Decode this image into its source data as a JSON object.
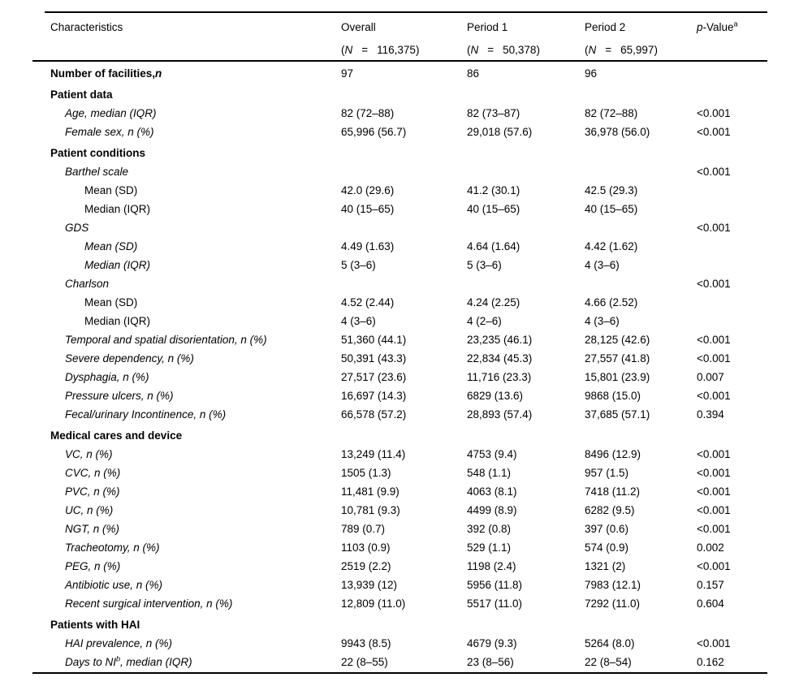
{
  "table": {
    "header": {
      "col1": "Characteristics",
      "paren_open": "(",
      "paren_close": ")",
      "pvalue": {
        "p": "p",
        "rest": "-Value",
        "sup": "a"
      },
      "cols": [
        {
          "title": "Overall",
          "n": "N",
          "eq": "=",
          "count": "116,375"
        },
        {
          "title": "Period 1",
          "n": "N",
          "eq": "=",
          "count": "50,378"
        },
        {
          "title": "Period 2",
          "n": "N",
          "eq": "=",
          "count": "65,997"
        }
      ]
    },
    "rows": [
      {
        "label": "Number of facilities,",
        "label_n": "n",
        "bold": true,
        "indent": 0,
        "italic": false,
        "values": [
          "97",
          "86",
          "96",
          ""
        ]
      },
      {
        "label": "Patient data",
        "section": true,
        "indent": 0,
        "values": [
          "",
          "",
          "",
          ""
        ]
      },
      {
        "label": "Age, median (IQR)",
        "indent": 1,
        "italic": true,
        "values": [
          "82 (72–88)",
          "82 (73–87)",
          "82 (72–88)",
          "<0.001"
        ]
      },
      {
        "label": "Female sex, n (%)",
        "indent": 1,
        "italic": true,
        "values": [
          "65,996 (56.7)",
          "29,018 (57.6)",
          "36,978 (56.0)",
          "<0.001"
        ]
      },
      {
        "label": "Patient conditions",
        "section": true,
        "indent": 0,
        "values": [
          "",
          "",
          "",
          ""
        ]
      },
      {
        "label": "Barthel scale",
        "indent": 1,
        "italic": true,
        "values": [
          "",
          "",
          "",
          "<0.001"
        ]
      },
      {
        "label": "Mean (SD)",
        "indent": 2,
        "italic": false,
        "values": [
          "42.0 (29.6)",
          "41.2 (30.1)",
          "42.5 (29.3)",
          ""
        ]
      },
      {
        "label": "Median (IQR)",
        "indent": 2,
        "italic": false,
        "values": [
          "40 (15–65)",
          "40 (15–65)",
          "40 (15–65)",
          ""
        ]
      },
      {
        "label": "GDS",
        "indent": 1,
        "italic": true,
        "values": [
          "",
          "",
          "",
          "<0.001"
        ]
      },
      {
        "label": "Mean (SD)",
        "indent": 2,
        "italic": true,
        "values": [
          "4.49 (1.63)",
          "4.64 (1.64)",
          "4.42 (1.62)",
          ""
        ]
      },
      {
        "label": "Median (IQR)",
        "indent": 2,
        "italic": true,
        "values": [
          "5 (3–6)",
          "5 (3–6)",
          "4 (3–6)",
          ""
        ]
      },
      {
        "label": "Charlson",
        "indent": 1,
        "italic": true,
        "values": [
          "",
          "",
          "",
          "<0.001"
        ]
      },
      {
        "label": "Mean (SD)",
        "indent": 2,
        "italic": false,
        "values": [
          "4.52 (2.44)",
          "4.24 (2.25)",
          "4.66 (2.52)",
          ""
        ]
      },
      {
        "label": "Median (IQR)",
        "indent": 2,
        "italic": false,
        "values": [
          "4 (3–6)",
          "4 (2–6)",
          "4 (3–6)",
          ""
        ]
      },
      {
        "label": "Temporal and spatial disorientation, n (%)",
        "indent": 1,
        "italic": true,
        "values": [
          "51,360 (44.1)",
          "23,235 (46.1)",
          "28,125 (42.6)",
          "<0.001"
        ]
      },
      {
        "label": "Severe dependency, n (%)",
        "indent": 1,
        "italic": true,
        "values": [
          "50,391 (43.3)",
          "22,834 (45.3)",
          "27,557 (41.8)",
          "<0.001"
        ]
      },
      {
        "label": "Dysphagia, n (%)",
        "indent": 1,
        "italic": true,
        "values": [
          "27,517 (23.6)",
          "11,716 (23.3)",
          "15,801 (23.9)",
          "0.007"
        ]
      },
      {
        "label": "Pressure ulcers, n (%)",
        "indent": 1,
        "italic": true,
        "values": [
          "16,697 (14.3)",
          "6829 (13.6)",
          "9868 (15.0)",
          "<0.001"
        ]
      },
      {
        "label": "Fecal/urinary Incontinence, n (%)",
        "indent": 1,
        "italic": true,
        "values": [
          "66,578 (57.2)",
          "28,893 (57.4)",
          "37,685 (57.1)",
          "0.394"
        ]
      },
      {
        "label": "Medical cares and device",
        "section": true,
        "indent": 0,
        "values": [
          "",
          "",
          "",
          ""
        ]
      },
      {
        "label": "VC, n (%)",
        "indent": 1,
        "italic": true,
        "values": [
          "13,249 (11.4)",
          "4753 (9.4)",
          "8496 (12.9)",
          "<0.001"
        ]
      },
      {
        "label": "CVC, n (%)",
        "indent": 1,
        "italic": true,
        "values": [
          "1505 (1.3)",
          "548 (1.1)",
          "957 (1.5)",
          "<0.001"
        ]
      },
      {
        "label": "PVC, n (%)",
        "indent": 1,
        "italic": true,
        "values": [
          "11,481 (9.9)",
          "4063 (8.1)",
          "7418 (11.2)",
          "<0.001"
        ]
      },
      {
        "label": "UC, n (%)",
        "indent": 1,
        "italic": true,
        "values": [
          "10,781 (9.3)",
          "4499 (8.9)",
          "6282 (9.5)",
          "<0.001"
        ]
      },
      {
        "label": "NGT, n (%)",
        "indent": 1,
        "italic": true,
        "values": [
          "789 (0.7)",
          "392 (0.8)",
          "397 (0.6)",
          "<0.001"
        ]
      },
      {
        "label": "Tracheotomy, n (%)",
        "indent": 1,
        "italic": true,
        "values": [
          "1103 (0.9)",
          "529 (1.1)",
          "574 (0.9)",
          "0.002"
        ]
      },
      {
        "label": "PEG, n (%)",
        "indent": 1,
        "italic": true,
        "values": [
          "2519 (2.2)",
          "1198 (2.4)",
          "1321 (2)",
          "<0.001"
        ]
      },
      {
        "label": "Antibiotic use, n (%)",
        "indent": 1,
        "italic": true,
        "values": [
          "13,939 (12)",
          "5956 (11.8)",
          "7983 (12.1)",
          "0.157"
        ]
      },
      {
        "label": "Recent surgical intervention, n (%)",
        "indent": 1,
        "italic": true,
        "values": [
          "12,809 (11.0)",
          "5517 (11.0)",
          "7292 (11.0)",
          "0.604"
        ]
      },
      {
        "label": "Patients with HAI",
        "section": true,
        "indent": 0,
        "values": [
          "",
          "",
          "",
          ""
        ]
      },
      {
        "label": "HAI prevalence, n (%)",
        "indent": 1,
        "italic": true,
        "values": [
          "9943 (8.5)",
          "4679 (9.3)",
          "5264 (8.0)",
          "<0.001"
        ]
      },
      {
        "label": "Days to NI",
        "sup": "b",
        "tail": ", median (IQR)",
        "indent": 1,
        "italic": true,
        "values": [
          "22 (8–55)",
          "23 (8–56)",
          "22 (8–54)",
          "0.162"
        ]
      }
    ]
  }
}
